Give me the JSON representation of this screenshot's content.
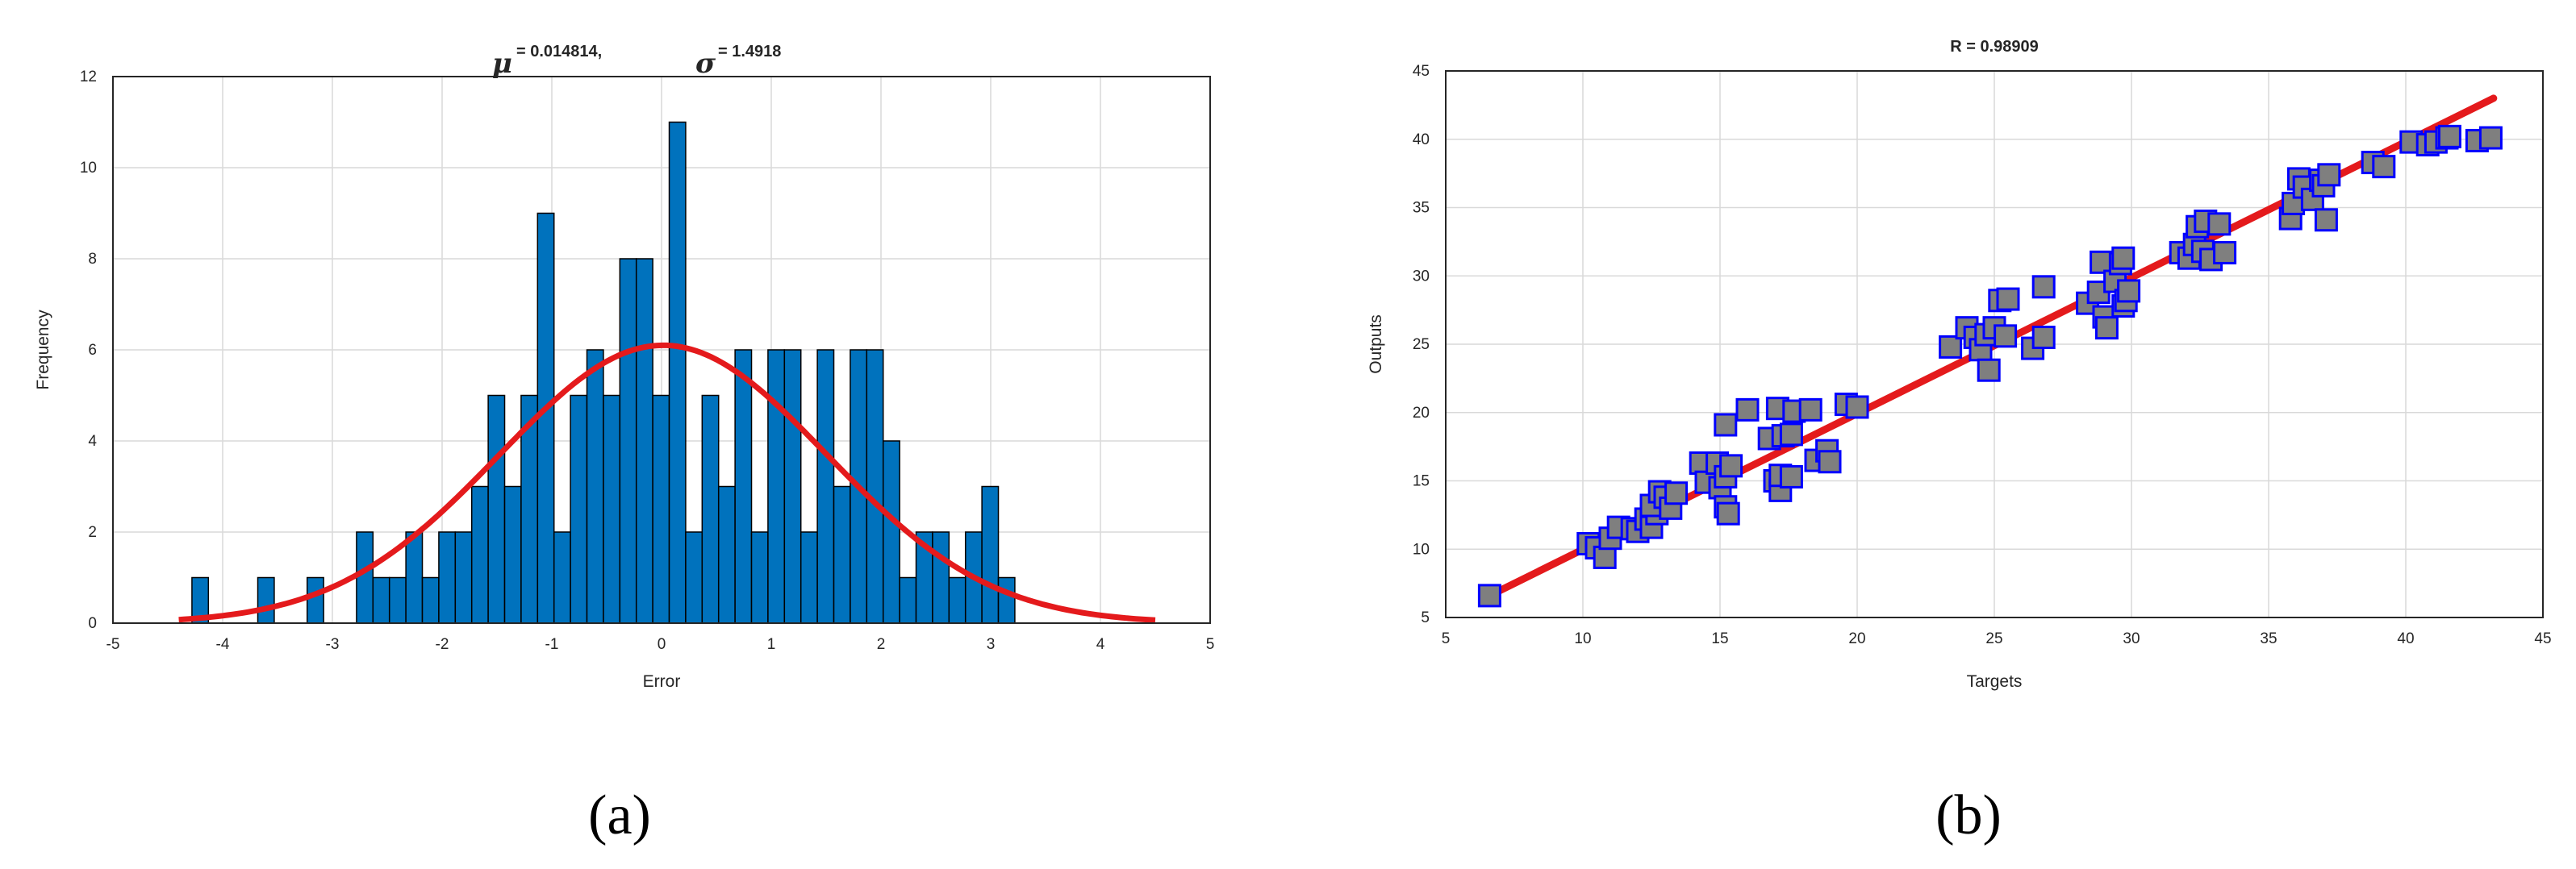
{
  "colors": {
    "bar_fill": "#0072bd",
    "bar_edge": "#000000",
    "fit_line": "#e41a1c",
    "marker_fill": "#7f7f7f",
    "marker_edge": "#0000ff",
    "grid": "#d9d9d9",
    "axis": "#262626"
  },
  "chart_data": [
    {
      "type": "bar",
      "subtype": "histogram-with-normal-fit",
      "caption": "(a)",
      "title": {
        "mu_symbol": "μ",
        "mu_text": "= 0.014814,",
        "sigma_symbol": "σ",
        "sigma_text": "= 1.4918"
      },
      "xlabel": "Error",
      "ylabel": "Frequency",
      "xlim": [
        -5,
        5
      ],
      "ylim": [
        0,
        12
      ],
      "xticks": [
        -5,
        -4,
        -3,
        -2,
        -1,
        0,
        1,
        2,
        3,
        4,
        5
      ],
      "yticks": [
        0,
        2,
        4,
        6,
        8,
        10,
        12
      ],
      "grid": true,
      "bin_start": -4.28,
      "bin_width": 0.15,
      "counts": [
        1,
        0,
        0,
        0,
        1,
        0,
        0,
        1,
        0,
        0,
        2,
        1,
        1,
        2,
        1,
        2,
        2,
        3,
        5,
        3,
        5,
        9,
        2,
        5,
        6,
        5,
        8,
        8,
        5,
        11,
        2,
        5,
        3,
        6,
        2,
        6,
        6,
        2,
        6,
        3,
        6,
        6,
        4,
        1,
        2,
        2,
        1,
        2,
        3,
        1
      ],
      "normal_fit": {
        "mu": 0.014814,
        "sigma": 1.4918,
        "peak": 6.1,
        "x_range": [
          -4.4,
          4.5
        ]
      }
    },
    {
      "type": "scatter",
      "caption": "(b)",
      "title": "R = 0.98909",
      "xlabel": "Targets",
      "ylabel": "Outputs",
      "xlim": [
        5,
        45
      ],
      "ylim": [
        5,
        45
      ],
      "xticks": [
        5,
        10,
        15,
        20,
        25,
        30,
        35,
        40,
        45
      ],
      "yticks": [
        5,
        10,
        15,
        20,
        25,
        30,
        35,
        40,
        45
      ],
      "grid": true,
      "fit_line": {
        "x": [
          6.5,
          43.2
        ],
        "y": [
          6.5,
          43.0
        ]
      },
      "points": [
        [
          6.6,
          6.6
        ],
        [
          10.2,
          10.4
        ],
        [
          10.5,
          10.1
        ],
        [
          10.8,
          9.4
        ],
        [
          11.0,
          10.8
        ],
        [
          11.3,
          11.6
        ],
        [
          11.8,
          11.5
        ],
        [
          12.0,
          11.3
        ],
        [
          12.3,
          12.2
        ],
        [
          12.5,
          11.6
        ],
        [
          12.7,
          12.6
        ],
        [
          12.5,
          13.2
        ],
        [
          12.8,
          14.2
        ],
        [
          13.0,
          13.8
        ],
        [
          13.2,
          13.0
        ],
        [
          13.4,
          14.1
        ],
        [
          14.3,
          16.3
        ],
        [
          14.5,
          14.9
        ],
        [
          14.9,
          16.3
        ],
        [
          15.0,
          14.5
        ],
        [
          15.2,
          15.3
        ],
        [
          15.4,
          16.1
        ],
        [
          15.2,
          13.1
        ],
        [
          15.3,
          12.6
        ],
        [
          15.2,
          19.1
        ],
        [
          16.0,
          20.2
        ],
        [
          16.8,
          18.1
        ],
        [
          17.0,
          15.0
        ],
        [
          17.2,
          14.3
        ],
        [
          17.2,
          15.4
        ],
        [
          17.1,
          20.3
        ],
        [
          17.3,
          18.3
        ],
        [
          17.6,
          18.4
        ],
        [
          17.6,
          15.3
        ],
        [
          17.7,
          20.1
        ],
        [
          18.3,
          20.2
        ],
        [
          18.5,
          16.5
        ],
        [
          18.9,
          17.2
        ],
        [
          19.0,
          16.4
        ],
        [
          19.6,
          20.6
        ],
        [
          20.0,
          20.4
        ],
        [
          23.4,
          24.8
        ],
        [
          24.0,
          26.2
        ],
        [
          24.3,
          25.5
        ],
        [
          24.5,
          24.6
        ],
        [
          24.7,
          25.7
        ],
        [
          24.8,
          23.1
        ],
        [
          25.0,
          26.2
        ],
        [
          25.2,
          28.2
        ],
        [
          25.4,
          25.6
        ],
        [
          25.5,
          28.3
        ],
        [
          26.4,
          24.7
        ],
        [
          26.8,
          25.5
        ],
        [
          26.8,
          29.2
        ],
        [
          28.4,
          28.0
        ],
        [
          28.8,
          28.8
        ],
        [
          28.9,
          31.0
        ],
        [
          29.0,
          27.0
        ],
        [
          29.1,
          26.2
        ],
        [
          29.4,
          29.6
        ],
        [
          29.6,
          30.9
        ],
        [
          29.7,
          31.3
        ],
        [
          29.7,
          27.8
        ],
        [
          29.8,
          28.2
        ],
        [
          29.9,
          28.9
        ],
        [
          31.8,
          31.7
        ],
        [
          32.1,
          31.3
        ],
        [
          32.3,
          32.3
        ],
        [
          32.4,
          33.6
        ],
        [
          32.6,
          31.8
        ],
        [
          32.7,
          34.0
        ],
        [
          32.9,
          31.2
        ],
        [
          33.2,
          33.8
        ],
        [
          33.4,
          31.7
        ],
        [
          35.8,
          34.2
        ],
        [
          35.9,
          35.3
        ],
        [
          36.1,
          37.1
        ],
        [
          36.3,
          36.5
        ],
        [
          36.6,
          35.6
        ],
        [
          36.9,
          37.0
        ],
        [
          37.0,
          36.6
        ],
        [
          37.1,
          34.1
        ],
        [
          37.2,
          37.4
        ],
        [
          38.8,
          38.3
        ],
        [
          39.2,
          38.0
        ],
        [
          40.2,
          39.8
        ],
        [
          40.8,
          39.6
        ],
        [
          41.1,
          39.8
        ],
        [
          41.5,
          40.1
        ],
        [
          41.6,
          40.2
        ],
        [
          42.6,
          39.9
        ],
        [
          43.1,
          40.1
        ]
      ]
    }
  ]
}
